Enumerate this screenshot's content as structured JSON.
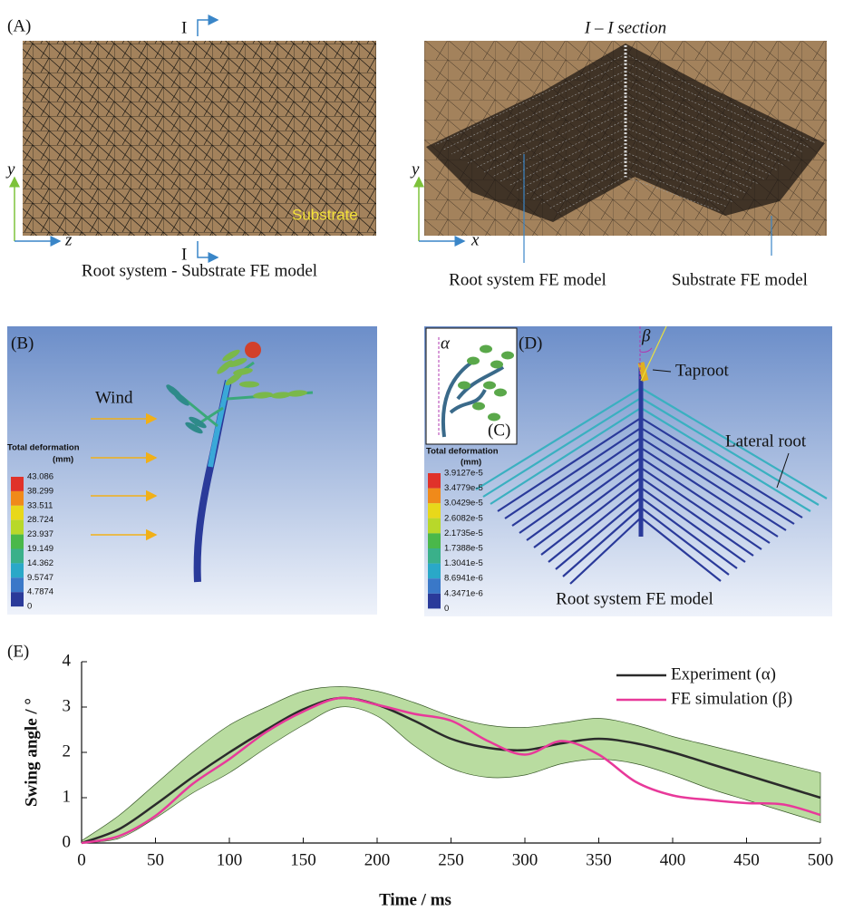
{
  "panel_a": {
    "label": "(A)",
    "section_mark_top": "I",
    "section_mark_bottom": "I",
    "section_title": "I – I section",
    "axis_y_left": "y",
    "axis_z": "z",
    "substrate": "Substrate",
    "caption_left": "Root system - Substrate FE model",
    "axis_y_right": "y",
    "axis_x": "x",
    "caption_root": "Root system FE model",
    "caption_substrate": "Substrate FE model"
  },
  "panel_b": {
    "label": "(B)",
    "wind": "Wind",
    "legend_title": "Total deformation",
    "legend_unit": "(mm)",
    "legend_labels": [
      "43.086",
      "38.299",
      "33.511",
      "28.724",
      "23.937",
      "19.149",
      "14.362",
      "9.5747",
      "4.7874",
      "0"
    ]
  },
  "panel_c": {
    "label": "(C)",
    "angle": "α"
  },
  "panel_d": {
    "label": "(D)",
    "angle": "β",
    "taproot": "Taproot",
    "lateral_root": "Lateral root",
    "legend_title": "Total deformation",
    "legend_unit": "(mm)",
    "legend_labels": [
      "3.9127e-5",
      "3.4779e-5",
      "3.0429e-5",
      "2.6082e-5",
      "2.1735e-5",
      "1.7388e-5",
      "1.3041e-5",
      "8.6941e-6",
      "4.3471e-6",
      "0"
    ],
    "caption": "Root system FE model"
  },
  "chart_data": {
    "type": "line",
    "title": "(E)",
    "x_label": "Time / ms",
    "y_label": "Swing angle / °",
    "x": [
      0,
      25,
      50,
      75,
      100,
      125,
      150,
      175,
      200,
      225,
      250,
      275,
      300,
      325,
      350,
      375,
      400,
      425,
      450,
      475,
      500
    ],
    "series": [
      {
        "name": "Experiment (α)",
        "color": "#2b2b2b",
        "values": [
          0,
          0.3,
          0.85,
          1.45,
          2.0,
          2.5,
          2.95,
          3.2,
          3.05,
          2.7,
          2.3,
          2.1,
          2.05,
          2.2,
          2.3,
          2.2,
          2.0,
          1.75,
          1.5,
          1.25,
          1.0
        ]
      },
      {
        "name": "FE simulation (β)",
        "color": "#e8399a",
        "values": [
          0,
          0.15,
          0.6,
          1.3,
          1.85,
          2.45,
          2.9,
          3.2,
          3.05,
          2.85,
          2.7,
          2.25,
          1.95,
          2.25,
          1.95,
          1.35,
          1.05,
          0.95,
          0.88,
          0.85,
          0.62
        ]
      }
    ],
    "band": {
      "color": "#b9dca0",
      "upper": [
        0.05,
        0.6,
        1.3,
        2.0,
        2.6,
        3.0,
        3.35,
        3.45,
        3.35,
        3.1,
        2.8,
        2.6,
        2.55,
        2.65,
        2.75,
        2.6,
        2.35,
        2.15,
        1.95,
        1.75,
        1.55
      ],
      "lower": [
        0,
        0.1,
        0.55,
        1.1,
        1.55,
        2.1,
        2.6,
        3.0,
        2.8,
        2.15,
        1.65,
        1.45,
        1.5,
        1.75,
        1.85,
        1.75,
        1.5,
        1.2,
        0.95,
        0.7,
        0.45
      ]
    },
    "xlim": [
      0,
      500
    ],
    "xticks": [
      0,
      50,
      100,
      150,
      200,
      250,
      300,
      350,
      400,
      450,
      500
    ],
    "ylim": [
      0,
      4
    ],
    "yticks": [
      0,
      1,
      2,
      3,
      4
    ],
    "legend": "top-right"
  }
}
